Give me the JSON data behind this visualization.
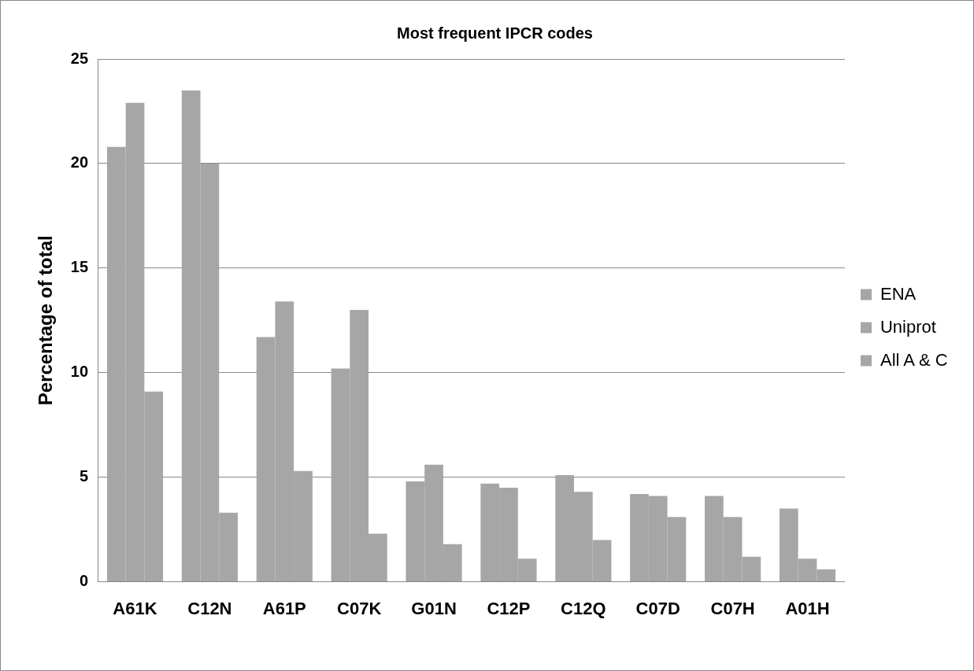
{
  "chart_data": {
    "type": "bar",
    "title": "Most frequent IPCR codes",
    "ylabel": "Percentage of total",
    "categories": [
      "A61K",
      "C12N",
      "A61P",
      "C07K",
      "G01N",
      "C12P",
      "C12Q",
      "C07D",
      "C07H",
      "A01H"
    ],
    "series": [
      {
        "name": "ENA",
        "color": "#a6a6a6",
        "values": [
          20.8,
          23.5,
          11.7,
          10.2,
          4.8,
          4.7,
          5.1,
          4.2,
          4.1,
          3.5
        ]
      },
      {
        "name": "Uniprot",
        "color": "#a6a6a6",
        "values": [
          22.9,
          20.0,
          13.4,
          13.0,
          5.6,
          4.5,
          4.3,
          4.1,
          3.1,
          1.1
        ]
      },
      {
        "name": "All A & C",
        "color": "#a6a6a6",
        "values": [
          9.1,
          3.3,
          5.3,
          2.3,
          1.8,
          1.1,
          2.0,
          3.1,
          1.2,
          0.6
        ]
      }
    ],
    "ylim": [
      0,
      25
    ],
    "yticks": [
      0,
      5,
      10,
      15,
      20,
      25
    ],
    "grid": "y",
    "legend": "right"
  }
}
